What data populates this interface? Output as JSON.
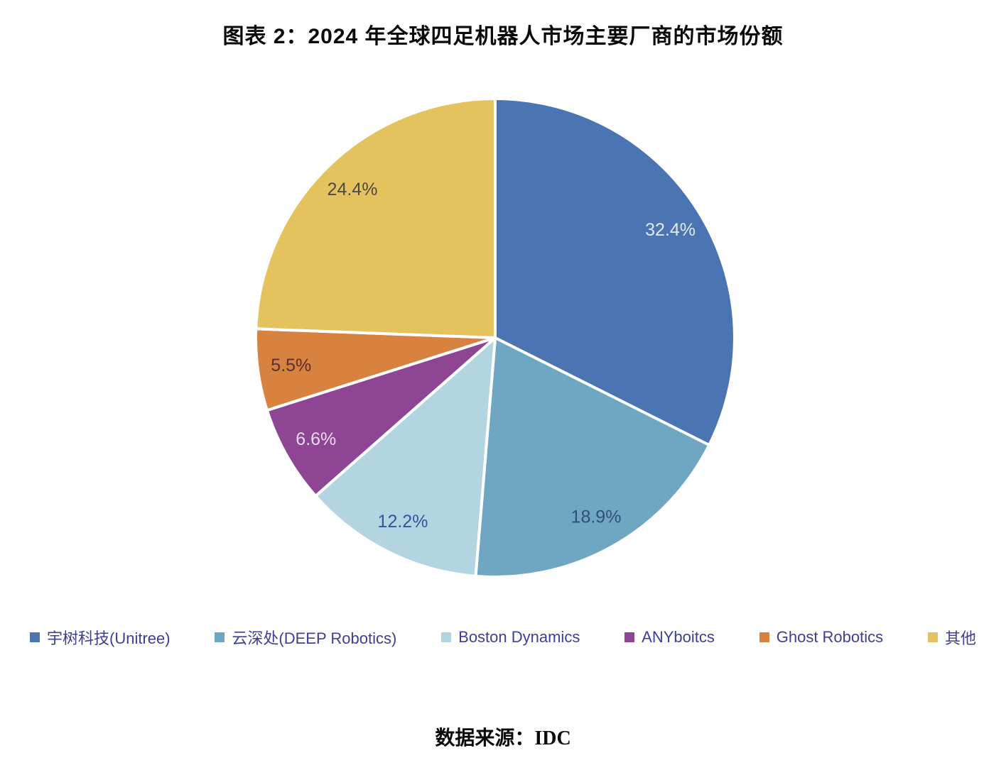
{
  "page": {
    "title": "图表 2：2024 年全球四足机器人市场主要厂商的市场份额",
    "source_label": "数据来源：",
    "source_value": "IDC"
  },
  "chart_data": {
    "type": "pie",
    "title": "图表 2：2024 年全球四足机器人市场主要厂商的市场份额",
    "source": "数据来源：IDC",
    "start_angle_deg": 0,
    "direction": "clockwise",
    "legend_position": "bottom",
    "units": "percent",
    "segments": [
      {
        "label": "宇树科技(Unitree)",
        "value": 32.4,
        "display": "32.4%",
        "color": "#4a75b2",
        "label_color": "#dfe9f5"
      },
      {
        "label": "云深处(DEEP Robotics)",
        "value": 18.9,
        "display": "18.9%",
        "color": "#6fa7c2",
        "label_color": "#2e4f7d"
      },
      {
        "label": "Boston Dynamics",
        "value": 12.2,
        "display": "12.2%",
        "color": "#b3d5e1",
        "label_color": "#33559e"
      },
      {
        "label": "ANYboitcs",
        "value": 6.6,
        "display": "6.6%",
        "color": "#8d4594",
        "label_color": "#eedaee"
      },
      {
        "label": "Ghost Robotics",
        "value": 5.5,
        "display": "5.5%",
        "color": "#d8823f",
        "label_color": "#5a3029"
      },
      {
        "label": "其他",
        "value": 24.4,
        "display": "24.4%",
        "color": "#e4c35e",
        "label_color": "#4c4a42"
      }
    ]
  }
}
